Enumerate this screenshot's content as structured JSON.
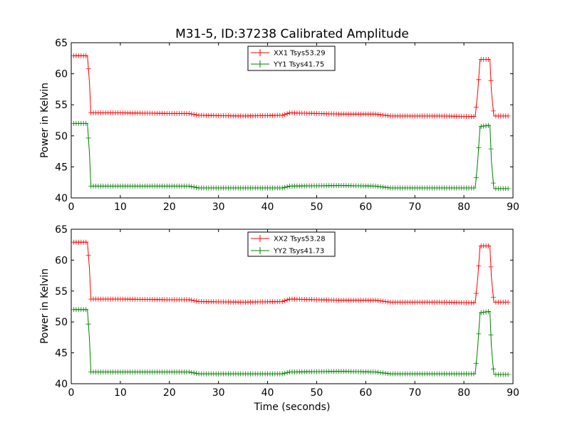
{
  "figure_title": "M31-5, ID:37238 Calibrated Amplitude",
  "colors": {
    "xx": "#ff0000",
    "yy": "#008000",
    "axes": "#000000"
  },
  "chart_data": [
    {
      "type": "line",
      "title": "M31-5, ID:37238 Calibrated Amplitude",
      "xlabel": "",
      "ylabel": "Power in Kelvin",
      "xlim": [
        0,
        90
      ],
      "ylim": [
        40,
        65
      ],
      "xticks": [
        0,
        10,
        20,
        30,
        40,
        50,
        60,
        70,
        80,
        90
      ],
      "yticks": [
        40,
        45,
        50,
        55,
        60,
        65
      ],
      "legend_position": "top-center",
      "grid": false,
      "marker": "+",
      "series": [
        {
          "name": "XX1 Tsys53.29",
          "color": "#ff0000",
          "points": [
            [
              0.5,
              62.9
            ],
            [
              3.3,
              62.9
            ],
            [
              3.7,
              58.7
            ],
            [
              4.0,
              53.7
            ],
            [
              10,
              53.7
            ],
            [
              20,
              53.6
            ],
            [
              24,
              53.6
            ],
            [
              26,
              53.3
            ],
            [
              35,
              53.2
            ],
            [
              43,
              53.3
            ],
            [
              44.5,
              53.7
            ],
            [
              55,
              53.5
            ],
            [
              62,
              53.5
            ],
            [
              65,
              53.2
            ],
            [
              75,
              53.2
            ],
            [
              82.3,
              53.1
            ],
            [
              82.8,
              56.9
            ],
            [
              83.3,
              62.3
            ],
            [
              85.3,
              62.3
            ],
            [
              85.6,
              57.2
            ],
            [
              86.1,
              53.2
            ],
            [
              89,
              53.2
            ]
          ]
        },
        {
          "name": "YY1 Tsys41.75",
          "color": "#008000",
          "points": [
            [
              0.5,
              52.0
            ],
            [
              3.3,
              52.0
            ],
            [
              3.7,
              47.3
            ],
            [
              4.0,
              41.9
            ],
            [
              10,
              41.9
            ],
            [
              20,
              41.9
            ],
            [
              24,
              41.9
            ],
            [
              26,
              41.6
            ],
            [
              35,
              41.6
            ],
            [
              43,
              41.6
            ],
            [
              44.5,
              41.9
            ],
            [
              55,
              42.0
            ],
            [
              62,
              41.9
            ],
            [
              65,
              41.6
            ],
            [
              75,
              41.6
            ],
            [
              82.3,
              41.6
            ],
            [
              82.8,
              45.8
            ],
            [
              83.3,
              51.5
            ],
            [
              85.3,
              51.7
            ],
            [
              85.6,
              46.0
            ],
            [
              86.1,
              41.5
            ],
            [
              89,
              41.5
            ]
          ]
        }
      ]
    },
    {
      "type": "line",
      "title": "",
      "xlabel": "Time (seconds)",
      "ylabel": "Power in Kelvin",
      "xlim": [
        0,
        90
      ],
      "ylim": [
        40,
        65
      ],
      "xticks": [
        0,
        10,
        20,
        30,
        40,
        50,
        60,
        70,
        80,
        90
      ],
      "yticks": [
        40,
        45,
        50,
        55,
        60,
        65
      ],
      "legend_position": "top-center",
      "grid": false,
      "marker": "+",
      "series": [
        {
          "name": "XX2 Tsys53.28",
          "color": "#ff0000",
          "points": [
            [
              0.5,
              62.9
            ],
            [
              3.3,
              62.9
            ],
            [
              3.7,
              58.7
            ],
            [
              4.0,
              53.7
            ],
            [
              10,
              53.7
            ],
            [
              20,
              53.6
            ],
            [
              24,
              53.6
            ],
            [
              26,
              53.3
            ],
            [
              35,
              53.2
            ],
            [
              43,
              53.3
            ],
            [
              44.5,
              53.7
            ],
            [
              55,
              53.5
            ],
            [
              62,
              53.5
            ],
            [
              65,
              53.2
            ],
            [
              75,
              53.2
            ],
            [
              82.3,
              53.1
            ],
            [
              82.8,
              56.9
            ],
            [
              83.3,
              62.3
            ],
            [
              85.3,
              62.3
            ],
            [
              85.6,
              57.2
            ],
            [
              86.1,
              53.2
            ],
            [
              89,
              53.2
            ]
          ]
        },
        {
          "name": "YY2 Tsys41.73",
          "color": "#008000",
          "points": [
            [
              0.5,
              52.0
            ],
            [
              3.3,
              52.0
            ],
            [
              3.7,
              47.3
            ],
            [
              4.0,
              41.9
            ],
            [
              10,
              41.9
            ],
            [
              20,
              41.9
            ],
            [
              24,
              41.9
            ],
            [
              26,
              41.6
            ],
            [
              35,
              41.6
            ],
            [
              43,
              41.6
            ],
            [
              44.5,
              41.9
            ],
            [
              55,
              42.0
            ],
            [
              62,
              41.9
            ],
            [
              65,
              41.6
            ],
            [
              75,
              41.6
            ],
            [
              82.3,
              41.6
            ],
            [
              82.8,
              45.8
            ],
            [
              83.3,
              51.5
            ],
            [
              85.3,
              51.7
            ],
            [
              85.6,
              46.0
            ],
            [
              86.1,
              41.5
            ],
            [
              89,
              41.5
            ]
          ]
        }
      ]
    }
  ]
}
